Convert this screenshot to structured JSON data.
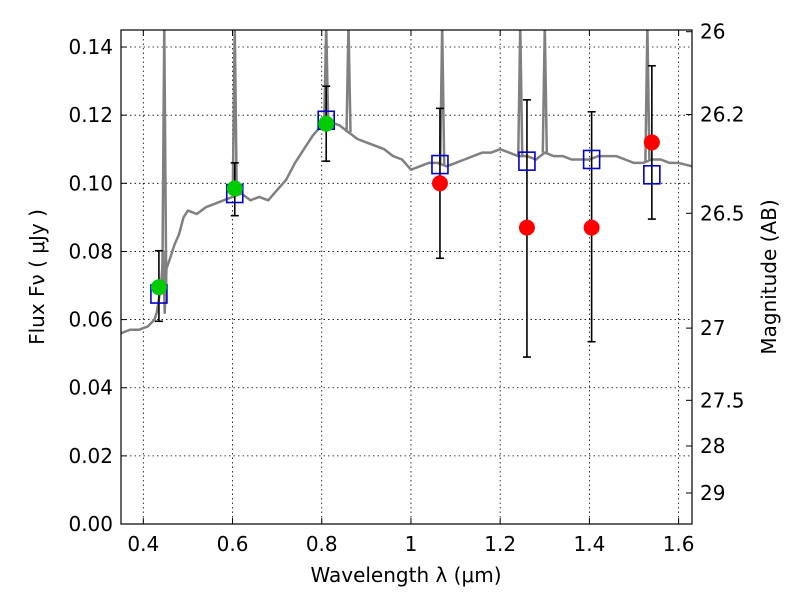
{
  "chart_data": {
    "type": "scatter",
    "xlabel": "Wavelength  λ (μm)",
    "ylabel": "Flux  Fν  ( μJy )",
    "y2label": "Magnitude (AB)",
    "xlim": [
      0.35,
      1.63
    ],
    "ylim": [
      0.0,
      0.145
    ],
    "grid": true,
    "x_ticks": [
      0.4,
      0.6,
      0.8,
      1.0,
      1.2,
      1.4,
      1.6
    ],
    "x_tick_labels": [
      "0.4",
      "0.6",
      "0.8",
      "1",
      "1.2",
      "1.4",
      "1.6"
    ],
    "y_ticks": [
      0.0,
      0.02,
      0.04,
      0.06,
      0.08,
      0.1,
      0.12,
      0.14
    ],
    "y_tick_labels": [
      "0.00",
      "0.02",
      "0.04",
      "0.06",
      "0.08",
      "0.10",
      "0.12",
      "0.14"
    ],
    "y2_ticks": [
      {
        "label": "26",
        "flux": 0.1445
      },
      {
        "label": "26.2",
        "flux": 0.1202
      },
      {
        "label": "26.5",
        "flux": 0.0912
      },
      {
        "label": "27",
        "flux": 0.0575
      },
      {
        "label": "27.5",
        "flux": 0.0363
      },
      {
        "label": "28",
        "flux": 0.0229
      },
      {
        "label": "29",
        "flux": 0.0091
      }
    ],
    "model_spectrum": {
      "color": "#808080",
      "points": [
        [
          0.35,
          0.056
        ],
        [
          0.37,
          0.057
        ],
        [
          0.39,
          0.057
        ],
        [
          0.41,
          0.058
        ],
        [
          0.425,
          0.06
        ],
        [
          0.43,
          0.062
        ],
        [
          0.435,
          0.066
        ],
        [
          0.44,
          0.07
        ],
        [
          0.445,
          0.08
        ],
        [
          0.448,
          0.062
        ],
        [
          0.452,
          0.075
        ],
        [
          0.46,
          0.078
        ],
        [
          0.47,
          0.082
        ],
        [
          0.48,
          0.085
        ],
        [
          0.49,
          0.09
        ],
        [
          0.5,
          0.092
        ],
        [
          0.52,
          0.091
        ],
        [
          0.54,
          0.093
        ],
        [
          0.56,
          0.094
        ],
        [
          0.58,
          0.095
        ],
        [
          0.6,
          0.096
        ],
        [
          0.62,
          0.097
        ],
        [
          0.64,
          0.095
        ],
        [
          0.66,
          0.096
        ],
        [
          0.68,
          0.095
        ],
        [
          0.7,
          0.098
        ],
        [
          0.72,
          0.101
        ],
        [
          0.74,
          0.106
        ],
        [
          0.76,
          0.11
        ],
        [
          0.78,
          0.114
        ],
        [
          0.8,
          0.117
        ],
        [
          0.82,
          0.118
        ],
        [
          0.84,
          0.117
        ],
        [
          0.86,
          0.115
        ],
        [
          0.88,
          0.113
        ],
        [
          0.9,
          0.112
        ],
        [
          0.92,
          0.111
        ],
        [
          0.94,
          0.11
        ],
        [
          0.96,
          0.108
        ],
        [
          0.98,
          0.107
        ],
        [
          1.0,
          0.104
        ],
        [
          1.02,
          0.105
        ],
        [
          1.04,
          0.106
        ],
        [
          1.06,
          0.106
        ],
        [
          1.08,
          0.105
        ],
        [
          1.1,
          0.106
        ],
        [
          1.12,
          0.107
        ],
        [
          1.14,
          0.108
        ],
        [
          1.16,
          0.109
        ],
        [
          1.18,
          0.109
        ],
        [
          1.2,
          0.11
        ],
        [
          1.22,
          0.109
        ],
        [
          1.24,
          0.108
        ],
        [
          1.26,
          0.108
        ],
        [
          1.28,
          0.107
        ],
        [
          1.3,
          0.109
        ],
        [
          1.32,
          0.108
        ],
        [
          1.34,
          0.108
        ],
        [
          1.36,
          0.107
        ],
        [
          1.38,
          0.107
        ],
        [
          1.4,
          0.107
        ],
        [
          1.42,
          0.108
        ],
        [
          1.44,
          0.108
        ],
        [
          1.46,
          0.108
        ],
        [
          1.48,
          0.107
        ],
        [
          1.5,
          0.106
        ],
        [
          1.52,
          0.106
        ],
        [
          1.54,
          0.107
        ],
        [
          1.56,
          0.107
        ],
        [
          1.58,
          0.106
        ],
        [
          1.6,
          0.106
        ],
        [
          1.63,
          0.105
        ]
      ],
      "emission_lines": [
        {
          "x": 0.447,
          "top": 0.145
        },
        {
          "x": 0.605,
          "top": 0.145
        },
        {
          "x": 0.81,
          "top": 0.145
        },
        {
          "x": 0.86,
          "top": 0.145
        },
        {
          "x": 1.07,
          "top": 0.145
        },
        {
          "x": 1.245,
          "top": 0.145
        },
        {
          "x": 1.3,
          "top": 0.145
        },
        {
          "x": 1.53,
          "top": 0.145
        }
      ]
    },
    "series": [
      {
        "marker": "square",
        "color": "#0000cc",
        "points": [
          {
            "x": 0.435,
            "y": 0.0675
          },
          {
            "x": 0.605,
            "y": 0.097
          },
          {
            "x": 0.81,
            "y": 0.1185
          },
          {
            "x": 1.065,
            "y": 0.1055
          },
          {
            "x": 1.26,
            "y": 0.1065
          },
          {
            "x": 1.405,
            "y": 0.107
          },
          {
            "x": 1.54,
            "y": 0.1025
          }
        ]
      },
      {
        "marker": "circle",
        "color": "#00cc00",
        "points": [
          {
            "x": 0.435,
            "y": 0.0695,
            "yerr_low": 0.0595,
            "yerr_high": 0.0802
          },
          {
            "x": 0.605,
            "y": 0.0985,
            "yerr_low": 0.0905,
            "yerr_high": 0.106
          },
          {
            "x": 0.81,
            "y": 0.1175,
            "yerr_low": 0.1065,
            "yerr_high": 0.1285
          }
        ]
      },
      {
        "marker": "circle",
        "color": "#ff0000",
        "points": [
          {
            "x": 1.065,
            "y": 0.1,
            "yerr_low": 0.078,
            "yerr_high": 0.122
          },
          {
            "x": 1.26,
            "y": 0.087,
            "yerr_low": 0.049,
            "yerr_high": 0.1245
          },
          {
            "x": 1.405,
            "y": 0.087,
            "yerr_low": 0.0535,
            "yerr_high": 0.121
          },
          {
            "x": 1.54,
            "y": 0.112,
            "yerr_low": 0.0895,
            "yerr_high": 0.1345
          }
        ]
      }
    ]
  }
}
